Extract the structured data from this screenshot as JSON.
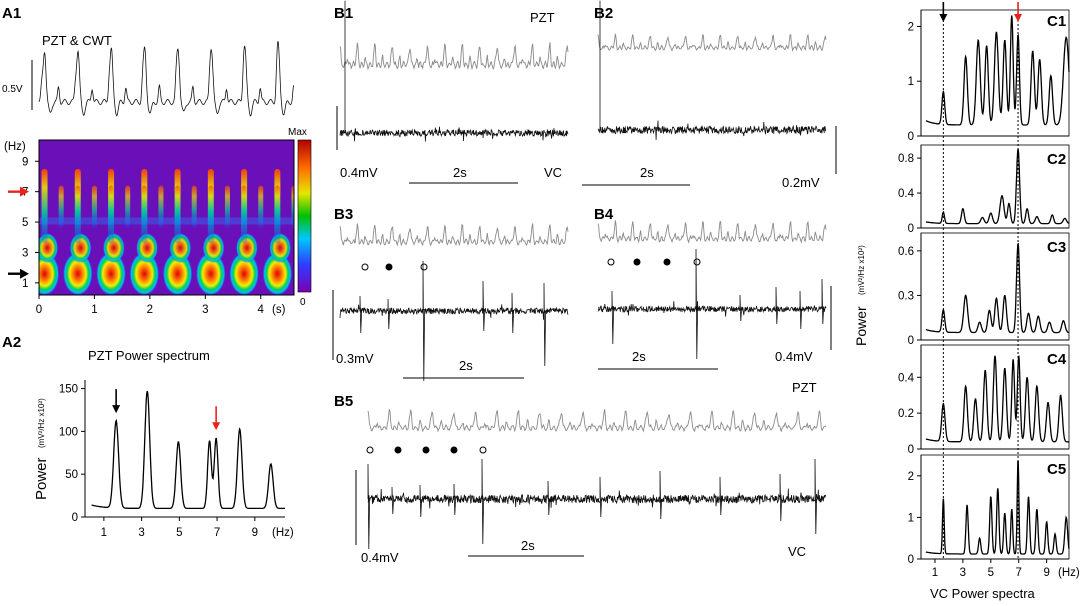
{
  "panels": {
    "A1": {
      "label": "A1",
      "title": "PZT & CWT",
      "scale": "0.5V",
      "y_unit": "(Hz)",
      "y_ticks": [
        "9",
        "7",
        "5",
        "3",
        "1"
      ],
      "x_ticks": [
        "0",
        "1",
        "2",
        "3",
        "4"
      ],
      "x_unit": "(s)",
      "colorbar_max": "Max",
      "colorbar_min": "0",
      "arrow_red_hz": 7,
      "arrow_black_hz": 1.6
    },
    "A2": {
      "label": "A2",
      "title": "PZT Power spectrum",
      "ylabel": "Power",
      "yunit": "(mV²/Hz x10²)",
      "y_ticks": [
        "150",
        "100",
        "50",
        "0"
      ],
      "x_ticks": [
        "1",
        "3",
        "5",
        "7",
        "9"
      ],
      "x_unit": "(Hz)"
    },
    "B1": {
      "label": "B1",
      "tag_top": "PZT",
      "scale_v": "0.4mV",
      "scale_t": "2s",
      "tag_bottom": "VC"
    },
    "B2": {
      "label": "B2",
      "scale_t": "2s",
      "scale_v": "0.2mV"
    },
    "B3": {
      "label": "B3",
      "scale_v": "0.3mV",
      "scale_t": "2s"
    },
    "B4": {
      "label": "B4",
      "scale_t": "2s",
      "scale_v": "0.4mV"
    },
    "B5": {
      "label": "B5",
      "tag_top": "PZT",
      "scale_v": "0.4mV",
      "scale_t": "2s",
      "tag_bottom": "VC"
    },
    "C": {
      "labels": [
        "C1",
        "C2",
        "C3",
        "C4",
        "C5"
      ],
      "ylabel": "Power",
      "yunit": "(mV²/Hz x10²)",
      "x_ticks": [
        "1",
        "3",
        "5",
        "7",
        "9"
      ],
      "x_unit": "(Hz)",
      "xlabel": "VC Power spectra"
    }
  },
  "chart_data": [
    {
      "id": "A2",
      "type": "line",
      "title": "PZT Power spectrum",
      "xlabel": "(Hz)",
      "ylabel": "Power (mV²/Hz x10²)",
      "xlim": [
        0,
        10.6
      ],
      "ylim": [
        0,
        160
      ],
      "x_ticks": [
        1,
        3,
        5,
        7,
        9
      ],
      "y_ticks": [
        0,
        50,
        100,
        150
      ],
      "baseline": 10,
      "peaks": [
        {
          "x": 1.65,
          "y": 112,
          "w": 0.13
        },
        {
          "x": 3.3,
          "y": 147,
          "w": 0.13
        },
        {
          "x": 4.95,
          "y": 88,
          "w": 0.12
        },
        {
          "x": 6.6,
          "y": 89,
          "w": 0.1
        },
        {
          "x": 6.95,
          "y": 92,
          "w": 0.1
        },
        {
          "x": 8.2,
          "y": 103,
          "w": 0.12
        },
        {
          "x": 9.85,
          "y": 62,
          "w": 0.12
        }
      ],
      "annotations": [
        {
          "x": 1.65,
          "color": "#000000",
          "arrow": "down"
        },
        {
          "x": 6.95,
          "color": "#e8231c",
          "arrow": "down"
        }
      ]
    },
    {
      "id": "C1",
      "type": "line",
      "xlim": [
        0,
        10.6
      ],
      "ylim": [
        0,
        2.3
      ],
      "y_ticks": [
        0,
        1,
        2
      ],
      "baseline": 0.2,
      "peaks": [
        {
          "x": 1.6,
          "y": 0.8,
          "w": 0.1
        },
        {
          "x": 3.2,
          "y": 1.45,
          "w": 0.12
        },
        {
          "x": 4.1,
          "y": 1.75,
          "w": 0.14
        },
        {
          "x": 4.7,
          "y": 1.65,
          "w": 0.12
        },
        {
          "x": 5.4,
          "y": 1.9,
          "w": 0.14
        },
        {
          "x": 6.0,
          "y": 1.75,
          "w": 0.12
        },
        {
          "x": 6.5,
          "y": 2.2,
          "w": 0.1
        },
        {
          "x": 6.95,
          "y": 1.85,
          "w": 0.1
        },
        {
          "x": 8.0,
          "y": 1.55,
          "w": 0.12
        },
        {
          "x": 8.5,
          "y": 1.4,
          "w": 0.12
        },
        {
          "x": 9.3,
          "y": 1.1,
          "w": 0.12
        },
        {
          "x": 10.4,
          "y": 1.8,
          "w": 0.2
        }
      ]
    },
    {
      "id": "C2",
      "type": "line",
      "xlim": [
        0,
        10.6
      ],
      "ylim": [
        0,
        0.95
      ],
      "y_ticks": [
        0,
        0.4,
        0.8
      ],
      "baseline": 0.05,
      "peaks": [
        {
          "x": 1.6,
          "y": 0.18,
          "w": 0.08
        },
        {
          "x": 3.0,
          "y": 0.22,
          "w": 0.1
        },
        {
          "x": 4.4,
          "y": 0.12,
          "w": 0.12
        },
        {
          "x": 5.0,
          "y": 0.17,
          "w": 0.12
        },
        {
          "x": 5.8,
          "y": 0.37,
          "w": 0.14
        },
        {
          "x": 6.3,
          "y": 0.28,
          "w": 0.1
        },
        {
          "x": 6.95,
          "y": 0.9,
          "w": 0.11
        },
        {
          "x": 7.6,
          "y": 0.22,
          "w": 0.1
        },
        {
          "x": 8.3,
          "y": 0.13,
          "w": 0.12
        },
        {
          "x": 9.4,
          "y": 0.15,
          "w": 0.1
        },
        {
          "x": 10.3,
          "y": 0.11,
          "w": 0.12
        }
      ]
    },
    {
      "id": "C3",
      "type": "line",
      "xlim": [
        0,
        10.6
      ],
      "ylim": [
        0,
        0.72
      ],
      "y_ticks": [
        0,
        0.3,
        0.6
      ],
      "baseline": 0.05,
      "peaks": [
        {
          "x": 1.6,
          "y": 0.2,
          "w": 0.1
        },
        {
          "x": 3.2,
          "y": 0.3,
          "w": 0.14
        },
        {
          "x": 4.2,
          "y": 0.12,
          "w": 0.12
        },
        {
          "x": 4.9,
          "y": 0.2,
          "w": 0.12
        },
        {
          "x": 5.4,
          "y": 0.28,
          "w": 0.12
        },
        {
          "x": 6.0,
          "y": 0.3,
          "w": 0.12
        },
        {
          "x": 6.95,
          "y": 0.65,
          "w": 0.11
        },
        {
          "x": 7.7,
          "y": 0.18,
          "w": 0.12
        },
        {
          "x": 8.4,
          "y": 0.16,
          "w": 0.12
        },
        {
          "x": 9.2,
          "y": 0.12,
          "w": 0.12
        },
        {
          "x": 10.2,
          "y": 0.13,
          "w": 0.12
        }
      ]
    },
    {
      "id": "C4",
      "type": "line",
      "xlim": [
        0,
        10.6
      ],
      "ylim": [
        0,
        0.58
      ],
      "y_ticks": [
        0,
        0.2,
        0.4
      ],
      "baseline": 0.04,
      "peaks": [
        {
          "x": 1.6,
          "y": 0.25,
          "w": 0.12
        },
        {
          "x": 3.2,
          "y": 0.35,
          "w": 0.12
        },
        {
          "x": 3.9,
          "y": 0.28,
          "w": 0.12
        },
        {
          "x": 4.6,
          "y": 0.44,
          "w": 0.12
        },
        {
          "x": 5.3,
          "y": 0.52,
          "w": 0.12
        },
        {
          "x": 6.0,
          "y": 0.45,
          "w": 0.12
        },
        {
          "x": 6.6,
          "y": 0.5,
          "w": 0.1
        },
        {
          "x": 7.0,
          "y": 0.52,
          "w": 0.1
        },
        {
          "x": 7.6,
          "y": 0.4,
          "w": 0.12
        },
        {
          "x": 8.3,
          "y": 0.35,
          "w": 0.12
        },
        {
          "x": 9.1,
          "y": 0.26,
          "w": 0.12
        },
        {
          "x": 10.0,
          "y": 0.3,
          "w": 0.12
        }
      ]
    },
    {
      "id": "C5",
      "type": "line",
      "xlim": [
        0,
        10.6
      ],
      "ylim": [
        0,
        2.5
      ],
      "y_ticks": [
        0,
        1,
        2
      ],
      "baseline": 0.12,
      "peaks": [
        {
          "x": 1.6,
          "y": 1.45,
          "w": 0.06
        },
        {
          "x": 3.3,
          "y": 1.3,
          "w": 0.08
        },
        {
          "x": 4.2,
          "y": 0.5,
          "w": 0.08
        },
        {
          "x": 5.0,
          "y": 1.5,
          "w": 0.08
        },
        {
          "x": 5.5,
          "y": 1.7,
          "w": 0.08
        },
        {
          "x": 6.0,
          "y": 1.1,
          "w": 0.08
        },
        {
          "x": 6.5,
          "y": 1.2,
          "w": 0.07
        },
        {
          "x": 6.95,
          "y": 2.4,
          "w": 0.06
        },
        {
          "x": 7.7,
          "y": 1.5,
          "w": 0.08
        },
        {
          "x": 8.3,
          "y": 1.2,
          "w": 0.08
        },
        {
          "x": 9.0,
          "y": 0.9,
          "w": 0.08
        },
        {
          "x": 9.6,
          "y": 0.6,
          "w": 0.08
        },
        {
          "x": 10.4,
          "y": 1.0,
          "w": 0.1
        }
      ]
    }
  ],
  "colors": {
    "red_arrow": "#e8231c",
    "black_arrow": "#000000",
    "pzt_trace": "#8a8a8a",
    "vc_trace": "#111111"
  }
}
